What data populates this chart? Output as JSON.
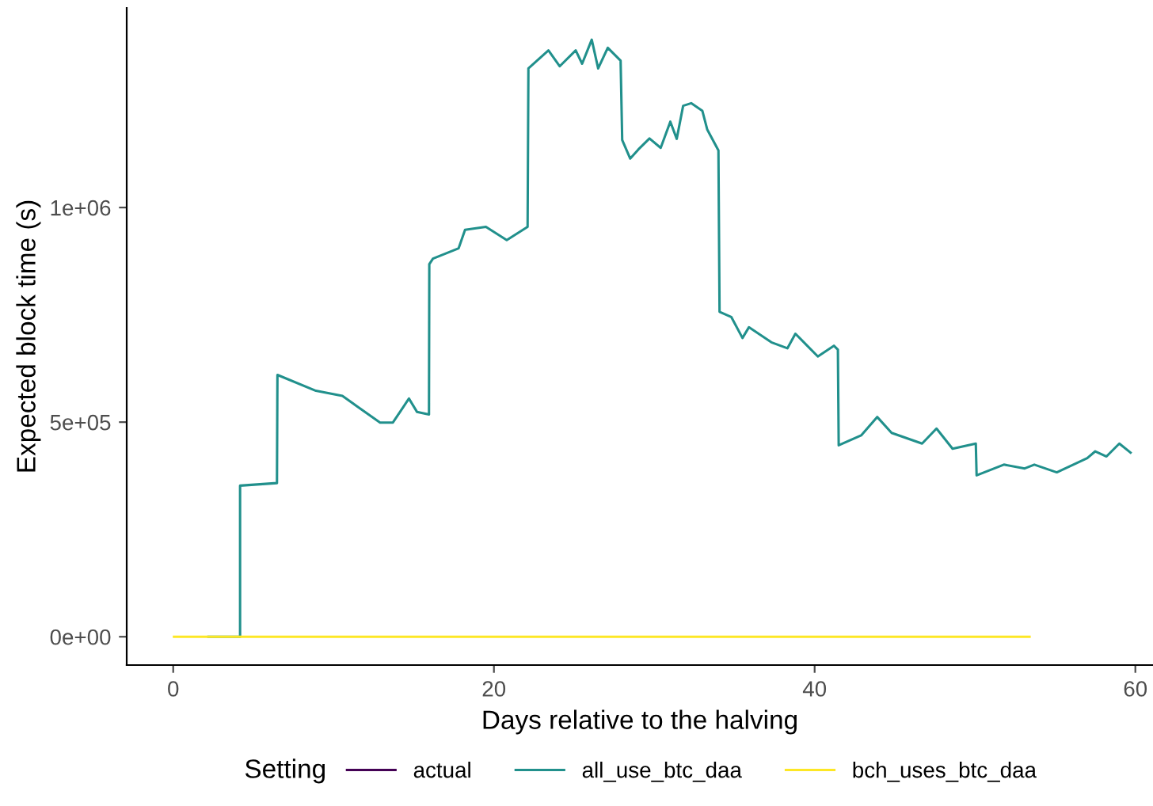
{
  "chart_data": {
    "type": "line",
    "xlabel": "Days relative to the halving",
    "ylabel": "Expected block time (s)",
    "legend_title": "Setting",
    "legend": "bottom",
    "grid": false,
    "marker": "none",
    "line_style": "solid",
    "xlim": [
      -2.9,
      61.1
    ],
    "ylim": [
      -66000,
      1465000
    ],
    "xticks": [
      0,
      20,
      40,
      60
    ],
    "yticks": [
      {
        "value": 0,
        "label": "0e+00"
      },
      {
        "value": 500000,
        "label": "5e+05"
      },
      {
        "value": 1000000,
        "label": "1e+06"
      }
    ],
    "series": [
      {
        "name": "actual",
        "color": "#440154"
      },
      {
        "name": "all_use_btc_daa",
        "color": "#21908c",
        "x": [
          2.2,
          4.17,
          4.17,
          6.47,
          6.5,
          8.9,
          10.55,
          11.5,
          12.9,
          13.7,
          14.7,
          15.2,
          15.95,
          15.97,
          16.2,
          17.8,
          18.2,
          19.5,
          20.8,
          22.1,
          22.15,
          23.4,
          24.1,
          25.1,
          25.5,
          26.1,
          26.5,
          27.1,
          27.9,
          28.0,
          28.5,
          29.0,
          29.7,
          30.4,
          31.0,
          31.4,
          31.8,
          32.3,
          33.0,
          33.3,
          34.0,
          34.07,
          34.8,
          35.5,
          35.9,
          37.3,
          38.3,
          38.8,
          40.2,
          41.2,
          41.45,
          41.5,
          42.9,
          43.9,
          44.8,
          46.7,
          47.6,
          48.6,
          50.05,
          50.1,
          51.8,
          53.1,
          53.7,
          55.1,
          57.0,
          57.5,
          58.2,
          59.0,
          59.7
        ],
        "values": [
          0,
          0,
          352000,
          358000,
          610000,
          573000,
          561000,
          536000,
          499000,
          499000,
          555000,
          524000,
          518000,
          868000,
          881000,
          905000,
          948000,
          955000,
          924000,
          955000,
          1324000,
          1366000,
          1329000,
          1366000,
          1335000,
          1391000,
          1324000,
          1372000,
          1342000,
          1157000,
          1114000,
          1135000,
          1161000,
          1139000,
          1200000,
          1160000,
          1237000,
          1243000,
          1225000,
          1182000,
          1133000,
          757000,
          745000,
          696000,
          721000,
          686000,
          672000,
          706000,
          653000,
          678000,
          669000,
          446000,
          469000,
          512000,
          475000,
          450000,
          485000,
          438000,
          450000,
          376000,
          401000,
          392000,
          401000,
          383000,
          416000,
          432000,
          420000,
          450000,
          429000
        ]
      },
      {
        "name": "bch_uses_btc_daa",
        "color": "#fde725",
        "x": [
          0.05,
          53.4
        ],
        "values": [
          0,
          0
        ]
      }
    ]
  }
}
